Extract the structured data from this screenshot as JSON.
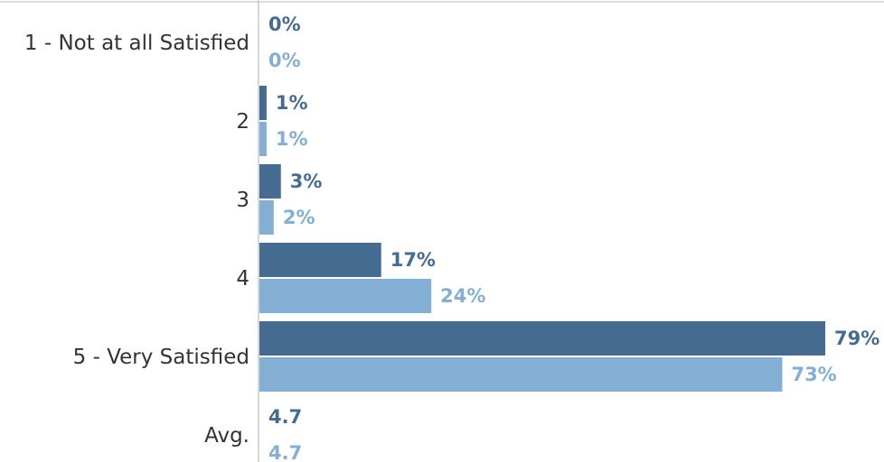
{
  "chart_data": {
    "type": "bar",
    "orientation": "horizontal",
    "title": "",
    "xlabel": "",
    "ylabel": "",
    "grid": false,
    "legend": "none",
    "xlim": [
      0,
      80
    ],
    "categories": [
      "1 - Not at all Satisfied",
      "2",
      "3",
      "4",
      "5 - Very Satisfied"
    ],
    "series": [
      {
        "color": "#456b91",
        "values": [
          0,
          1,
          3,
          17,
          79
        ],
        "labels": [
          "0%",
          "1%",
          "3%",
          "17%",
          "79%"
        ]
      },
      {
        "color": "#82afd3",
        "values": [
          0,
          1,
          2,
          24,
          73
        ],
        "labels": [
          "0%",
          "1%",
          "2%",
          "24%",
          "73%"
        ]
      }
    ],
    "summary_row": {
      "label": "Avg.",
      "values": [
        "4.7",
        "4.7"
      ]
    }
  }
}
